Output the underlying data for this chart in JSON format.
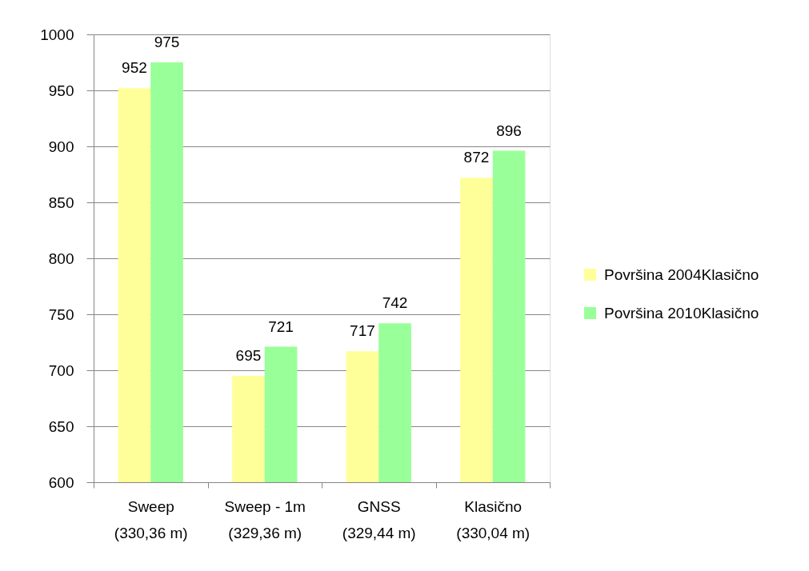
{
  "chart_data": {
    "type": "bar",
    "categories": [
      "Sweep\n(330,36 m)",
      "Sweep - 1m\n(329,36 m)",
      "GNSS\n(329,44 m)",
      "Klasično\n(330,04 m)"
    ],
    "series": [
      {
        "name": "Površina  2004Klasično",
        "color": "#ffff99",
        "values": [
          952,
          695,
          717,
          872
        ]
      },
      {
        "name": "Površina  2010Klasično",
        "color": "#99ff99",
        "values": [
          975,
          721,
          742,
          896
        ]
      }
    ],
    "ylim": [
      600,
      1000
    ],
    "yticks": [
      600,
      650,
      700,
      750,
      800,
      850,
      900,
      950,
      1000
    ],
    "grid": "y",
    "legend": "right",
    "data_labels": true
  }
}
